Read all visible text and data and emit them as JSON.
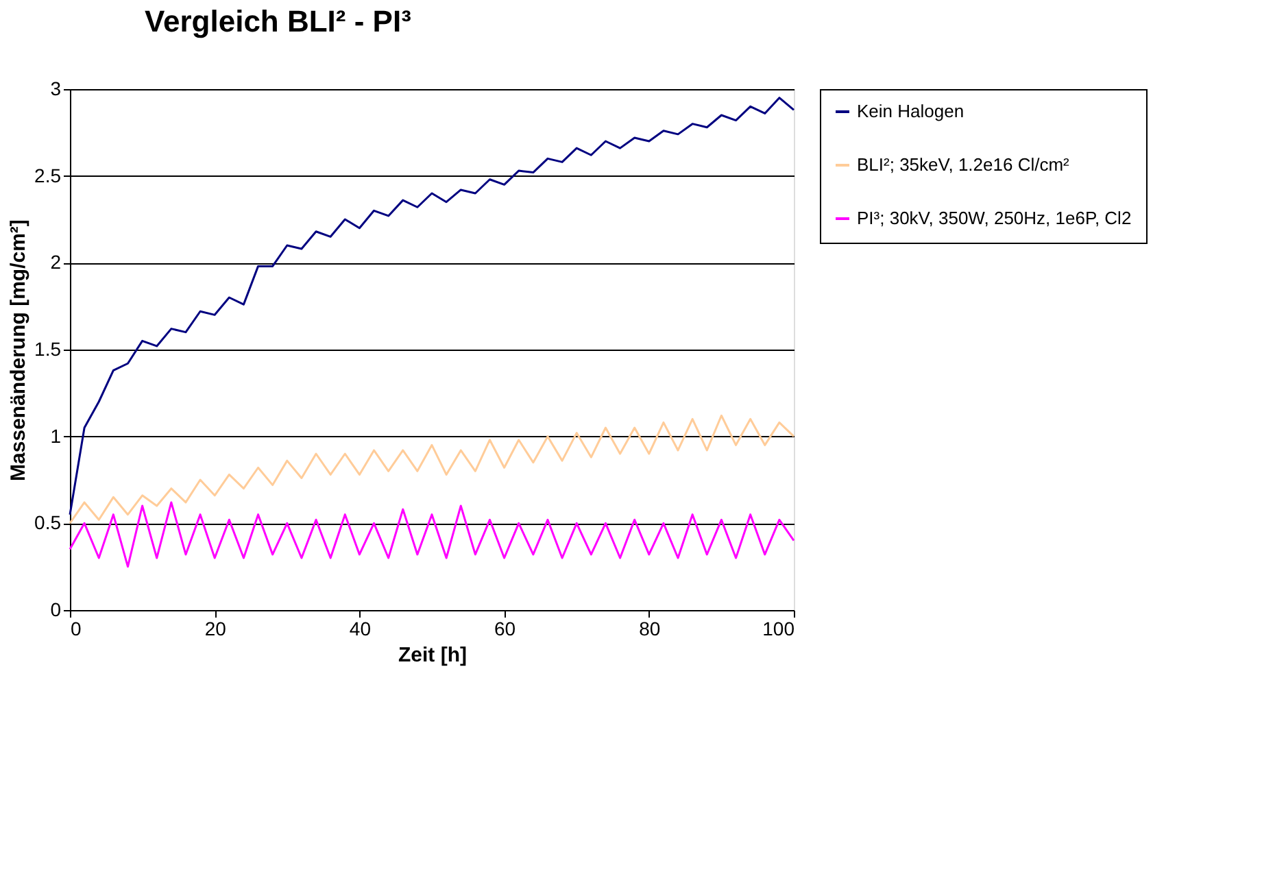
{
  "chart_data": {
    "type": "line",
    "title": "Vergleich BLI² - PI³",
    "xlabel": "Zeit [h]",
    "ylabel": "Massenänderung [mg/cm²]",
    "x": [
      0,
      2,
      4,
      6,
      8,
      10,
      12,
      14,
      16,
      18,
      20,
      22,
      24,
      26,
      28,
      30,
      32,
      34,
      36,
      38,
      40,
      42,
      44,
      46,
      48,
      50,
      52,
      54,
      56,
      58,
      60,
      62,
      64,
      66,
      68,
      70,
      72,
      74,
      76,
      78,
      80,
      82,
      84,
      86,
      88,
      90,
      92,
      94,
      96,
      98,
      100
    ],
    "series": [
      {
        "name": "Kein Halogen",
        "color": "#000080",
        "values": [
          0.55,
          1.05,
          1.2,
          1.38,
          1.42,
          1.55,
          1.52,
          1.62,
          1.6,
          1.72,
          1.7,
          1.8,
          1.76,
          1.98,
          1.98,
          2.1,
          2.08,
          2.18,
          2.15,
          2.25,
          2.2,
          2.3,
          2.27,
          2.36,
          2.32,
          2.4,
          2.35,
          2.42,
          2.4,
          2.48,
          2.45,
          2.53,
          2.52,
          2.6,
          2.58,
          2.66,
          2.62,
          2.7,
          2.66,
          2.72,
          2.7,
          2.76,
          2.74,
          2.8,
          2.78,
          2.85,
          2.82,
          2.9,
          2.86,
          2.95,
          2.88
        ]
      },
      {
        "name": "BLI²; 35keV, 1.2e16 Cl/cm²",
        "color": "#ffcc99",
        "values": [
          0.5,
          0.62,
          0.52,
          0.65,
          0.55,
          0.66,
          0.6,
          0.7,
          0.62,
          0.75,
          0.66,
          0.78,
          0.7,
          0.82,
          0.72,
          0.86,
          0.76,
          0.9,
          0.78,
          0.9,
          0.78,
          0.92,
          0.8,
          0.92,
          0.8,
          0.95,
          0.78,
          0.92,
          0.8,
          0.98,
          0.82,
          0.98,
          0.85,
          1.0,
          0.86,
          1.02,
          0.88,
          1.05,
          0.9,
          1.05,
          0.9,
          1.08,
          0.92,
          1.1,
          0.92,
          1.12,
          0.95,
          1.1,
          0.95,
          1.08,
          1.0
        ]
      },
      {
        "name": "PI³; 30kV, 350W, 250Hz, 1e6P, Cl2",
        "color": "#ff00ff",
        "values": [
          0.35,
          0.5,
          0.3,
          0.55,
          0.25,
          0.6,
          0.3,
          0.62,
          0.32,
          0.55,
          0.3,
          0.52,
          0.3,
          0.55,
          0.32,
          0.5,
          0.3,
          0.52,
          0.3,
          0.55,
          0.32,
          0.5,
          0.3,
          0.58,
          0.32,
          0.55,
          0.3,
          0.6,
          0.32,
          0.52,
          0.3,
          0.5,
          0.32,
          0.52,
          0.3,
          0.5,
          0.32,
          0.5,
          0.3,
          0.52,
          0.32,
          0.5,
          0.3,
          0.55,
          0.32,
          0.52,
          0.3,
          0.55,
          0.32,
          0.52,
          0.4
        ]
      }
    ],
    "xlim": [
      0,
      100
    ],
    "xticks": [
      0,
      20,
      40,
      60,
      80,
      100
    ],
    "ylim": [
      0,
      3
    ],
    "yticks": [
      0,
      0.5,
      1,
      1.5,
      2,
      2.5,
      3
    ],
    "grid": "y",
    "legend": "right",
    "marker": "none",
    "line_style": "solid"
  }
}
